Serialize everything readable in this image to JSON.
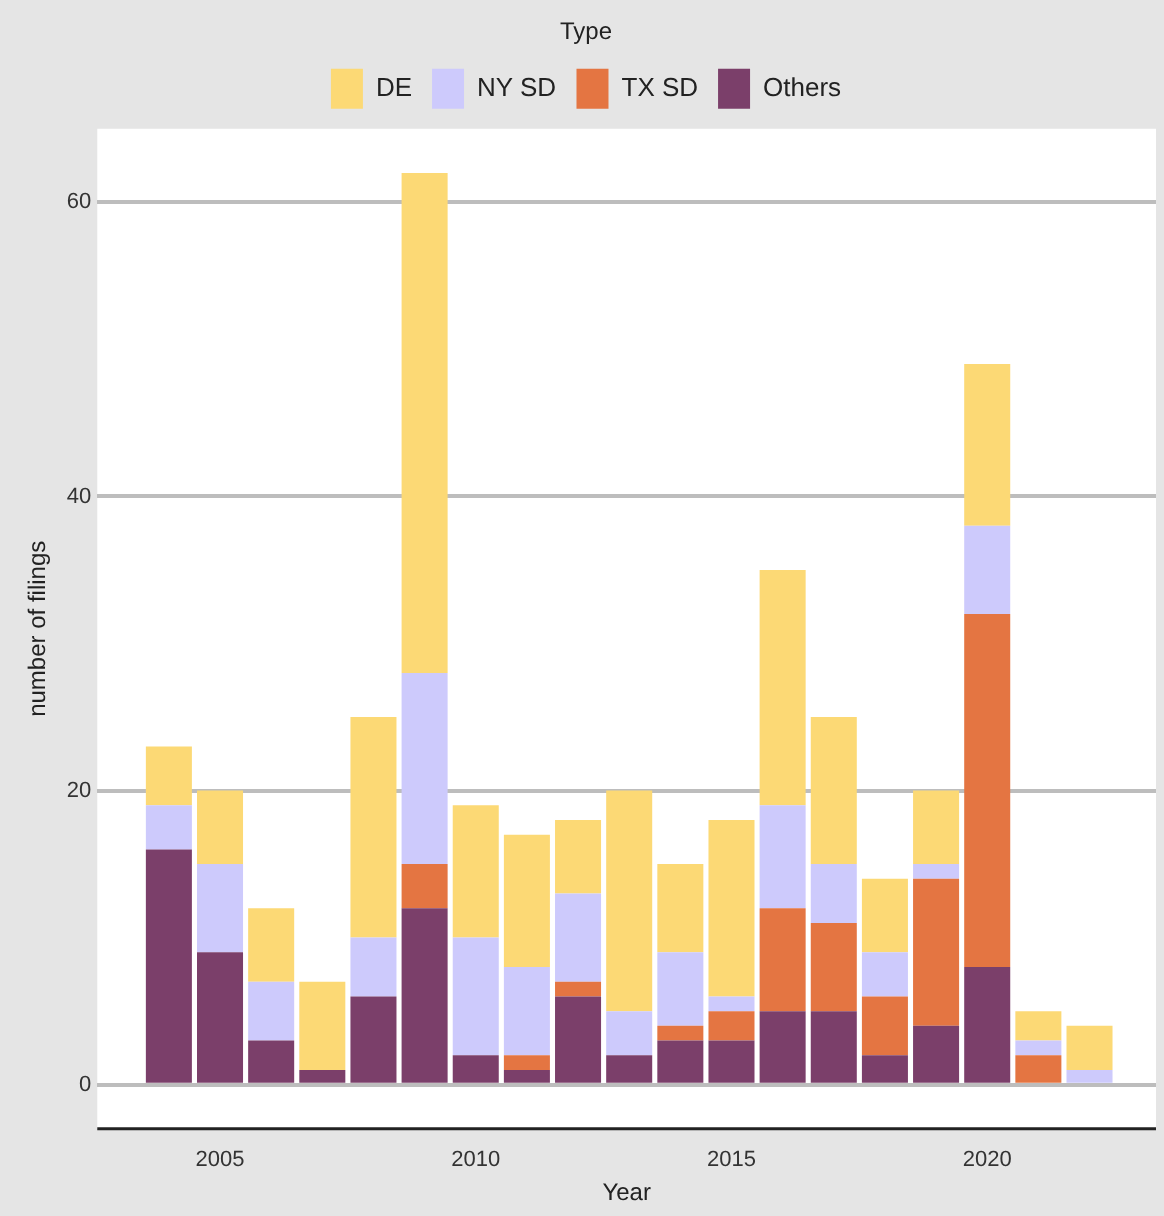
{
  "chart_data": {
    "type": "bar",
    "stacked": true,
    "xlabel": "Year",
    "ylabel": "number of filings",
    "legend_title": "Type",
    "legend": "top",
    "grid": "y",
    "x": [
      2004,
      2005,
      2006,
      2007,
      2008,
      2009,
      2010,
      2011,
      2012,
      2013,
      2014,
      2015,
      2016,
      2017,
      2018,
      2019,
      2020,
      2021,
      2022
    ],
    "xlim": [
      2002.6,
      2023.3
    ],
    "xticks": [
      2005,
      2010,
      2015,
      2020
    ],
    "ylim": [
      -3,
      65
    ],
    "yticks": [
      0,
      20,
      40,
      60
    ],
    "series": [
      {
        "name": "Others",
        "color": "#7b3f6a",
        "values": [
          16,
          9,
          3,
          1,
          6,
          12,
          2,
          1,
          6,
          2,
          3,
          3,
          5,
          5,
          2,
          4,
          8,
          0,
          0
        ]
      },
      {
        "name": "TX SD",
        "color": "#e47542",
        "values": [
          0,
          0,
          0,
          0,
          0,
          3,
          0,
          1,
          1,
          0,
          1,
          2,
          7,
          6,
          4,
          10,
          24,
          2,
          0
        ]
      },
      {
        "name": "NY SD",
        "color": "#cdcafc",
        "values": [
          3,
          6,
          4,
          0,
          4,
          13,
          8,
          6,
          6,
          3,
          5,
          1,
          7,
          4,
          3,
          1,
          6,
          1,
          1
        ]
      },
      {
        "name": "DE",
        "color": "#fcd975",
        "values": [
          4,
          5,
          5,
          6,
          15,
          34,
          9,
          9,
          5,
          15,
          6,
          12,
          16,
          10,
          5,
          5,
          11,
          2,
          3
        ]
      }
    ]
  }
}
